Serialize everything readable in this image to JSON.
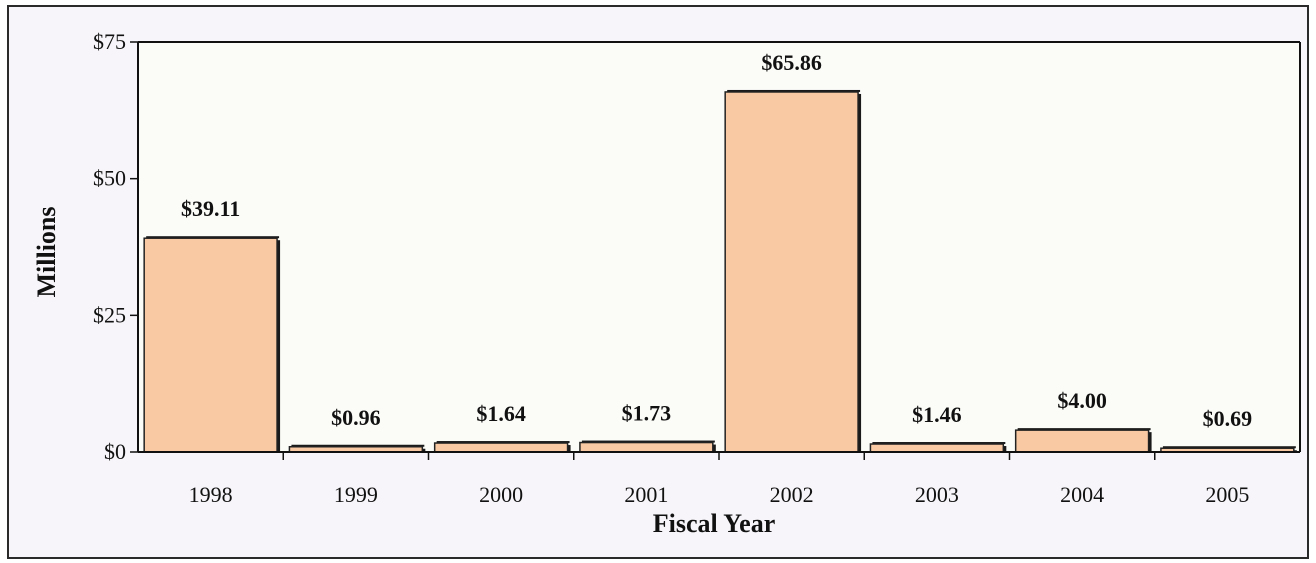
{
  "chart_data": {
    "type": "bar",
    "categories": [
      "1998",
      "1999",
      "2000",
      "2001",
      "2002",
      "2003",
      "2004",
      "2005"
    ],
    "values": [
      39.11,
      0.96,
      1.64,
      1.73,
      65.86,
      1.46,
      4.0,
      0.69
    ],
    "data_labels": [
      "$39.11",
      "$0.96",
      "$1.64",
      "$1.73",
      "$65.86",
      "$1.46",
      "$4.00",
      "$0.69"
    ],
    "xlabel": "Fiscal Year",
    "ylabel": "Millions",
    "ylim": [
      0,
      75
    ],
    "yticks": [
      0,
      25,
      50,
      75
    ],
    "ytick_labels": [
      "$0",
      "$25",
      "$50",
      "$75"
    ],
    "grid": false,
    "legend": "none",
    "bar_color": "#f8c9a2"
  }
}
